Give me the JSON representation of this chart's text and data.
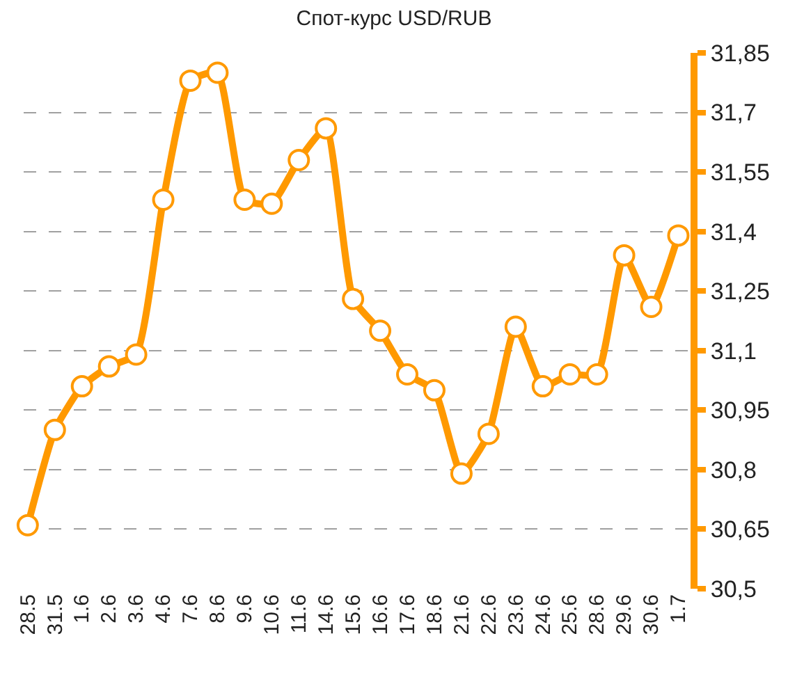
{
  "chart_data": {
    "type": "line",
    "title": "Спот-курс USD/RUB",
    "categories": [
      "28.5",
      "31.5",
      "1.6",
      "2.6",
      "3.6",
      "4.6",
      "7.6",
      "8.6",
      "9.6",
      "10.6",
      "11.6",
      "14.6",
      "15.6",
      "16.6",
      "17.6",
      "18.6",
      "21.6",
      "22.6",
      "23.6",
      "24.6",
      "25.6",
      "28.6",
      "29.6",
      "30.6",
      "1.7"
    ],
    "series": [
      {
        "color": "#ff9900",
        "values": [
          30.66,
          30.9,
          31.01,
          31.06,
          31.09,
          31.48,
          31.78,
          31.8,
          31.48,
          31.47,
          31.58,
          31.66,
          31.23,
          31.15,
          31.04,
          31.0,
          30.79,
          30.89,
          31.16,
          31.01,
          31.04,
          31.04,
          31.34,
          31.21,
          31.39
        ]
      }
    ],
    "ylim": [
      30.5,
      31.85
    ],
    "yticks": [
      {
        "value": 30.5,
        "label": "30,5"
      },
      {
        "value": 30.65,
        "label": "30,65"
      },
      {
        "value": 30.8,
        "label": "30,8"
      },
      {
        "value": 30.95,
        "label": "30,95"
      },
      {
        "value": 31.1,
        "label": "31,1"
      },
      {
        "value": 31.25,
        "label": "31,25"
      },
      {
        "value": 31.4,
        "label": "31,4"
      },
      {
        "value": 31.55,
        "label": "31,55"
      },
      {
        "value": 31.7,
        "label": "31,7"
      },
      {
        "value": 31.85,
        "label": "31,85"
      }
    ],
    "grid": "y",
    "legend": false,
    "marker": "circle",
    "line_style": "solid"
  }
}
